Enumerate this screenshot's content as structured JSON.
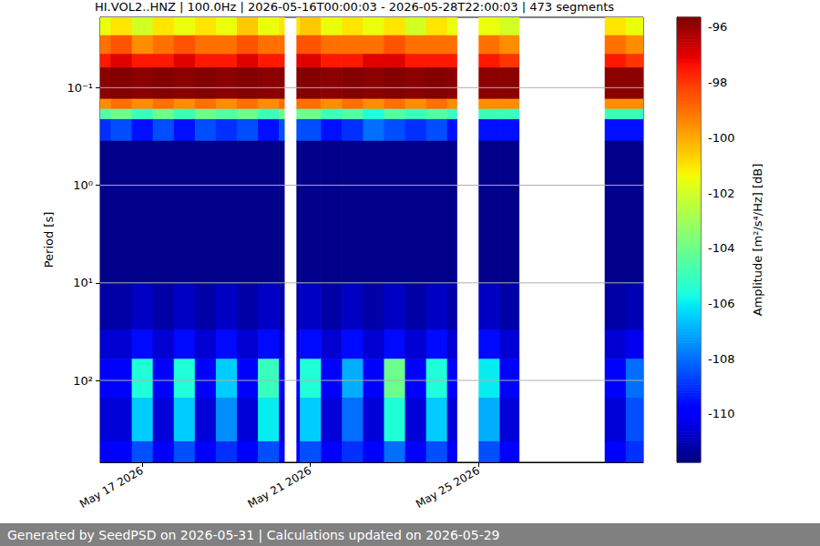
{
  "chart_data": {
    "type": "heatmap",
    "title": "HI.VOL2..HNZ | 100.0Hz | 2026-05-16T00:00:03 - 2026-05-28T22:00:03 | 473 segments",
    "footer": "Generated by SeedPSD on 2026-05-31 | Calculations updated on 2026-05-29",
    "y_label": "Period [s]",
    "colorbar_label": "Amplitude [m²/s⁴/Hz] [dB]",
    "log": "y",
    "grid": "y",
    "xlim": [
      "2026-05-16T00:00:03",
      "2026-05-28T22:00:03"
    ],
    "xticks": [
      {
        "value": "2026-05-17T00:00:00",
        "label": "May 17 2026"
      },
      {
        "value": "2026-05-21T00:00:00",
        "label": "May 21 2026"
      },
      {
        "value": "2026-05-25T00:00:00",
        "label": "May 25 2026"
      }
    ],
    "ylim": [
      0.019,
      690
    ],
    "yticks": [
      {
        "value": 0.1,
        "label": "10⁻¹"
      },
      {
        "value": 1,
        "label": "10⁰"
      },
      {
        "value": 10,
        "label": "10¹"
      },
      {
        "value": 100,
        "label": "10²"
      }
    ],
    "x_bins": [
      "2026-05-16T00:00:03",
      "2026-05-16T06:00:00",
      "2026-05-16T18:00:00",
      "2026-05-17T06:00:00",
      "2026-05-17T18:00:00",
      "2026-05-18T06:00:00",
      "2026-05-18T18:00:00",
      "2026-05-19T06:00:00",
      "2026-05-19T18:00:00",
      "2026-05-20T06:00:00",
      "2026-05-20T09:00:00",
      "2026-05-20T16:00:00",
      "2026-05-20T18:00:00",
      "2026-05-21T06:00:00",
      "2026-05-21T18:00:00",
      "2026-05-22T06:00:00",
      "2026-05-22T18:00:00",
      "2026-05-23T06:00:00",
      "2026-05-23T18:00:00",
      "2026-05-24T06:00:00",
      "2026-05-24T11:30:00",
      "2026-05-25T00:00:00",
      "2026-05-25T12:00:00",
      "2026-05-25T23:00:00",
      "2026-05-28T00:00:00",
      "2026-05-28T12:00:00",
      "2026-05-28T22:00:03"
    ],
    "y_bins": [
      0.019,
      0.029,
      0.045,
      0.062,
      0.13,
      0.165,
      0.21,
      0.35,
      10,
      30,
      60,
      150,
      420,
      690
    ],
    "cells": [
      [
        -101.5,
        -101,
        -102,
        -101,
        -101.5,
        -101,
        -101.5,
        -100.5,
        -101.5,
        -101,
        null,
        -101,
        -100.5,
        -101.5,
        -101,
        -101.5,
        -101,
        -102,
        -101,
        -101.5,
        null,
        -101.5,
        -102,
        null,
        -101,
        -101.5
      ],
      [
        -99,
        -98.5,
        -99.5,
        -99,
        -98.5,
        -99,
        -99,
        -98.5,
        -99,
        -99,
        null,
        -98.5,
        -98.5,
        -99,
        -99,
        -99,
        -98.5,
        -99,
        -99,
        -99,
        null,
        -99,
        -99.5,
        null,
        -99,
        -99.5
      ],
      [
        -97.5,
        -97,
        -97.5,
        -97.5,
        -97,
        -97.5,
        -97.5,
        -97,
        -97.5,
        -97.5,
        null,
        -97,
        -97,
        -97.5,
        -97.5,
        -97,
        -97,
        -97.5,
        -97.5,
        -97.5,
        null,
        -97.5,
        -98,
        null,
        -97.5,
        -98
      ],
      [
        -95.8,
        -95.7,
        -95.8,
        -95.7,
        -95.8,
        -95.7,
        -95.8,
        -95.7,
        -95.8,
        -95.7,
        null,
        -95.7,
        -95.7,
        -95.8,
        -95.7,
        -95.8,
        -95.7,
        -95.8,
        -95.7,
        -95.8,
        null,
        -95.8,
        -95.8,
        null,
        -95.8,
        -95.8
      ],
      [
        -99.5,
        -99,
        -99.5,
        -99,
        -99.5,
        -99,
        -99.5,
        -99,
        -99.5,
        -99,
        null,
        -99,
        -99,
        -99.5,
        -99,
        -99.5,
        -99,
        -99.5,
        -99,
        -99.5,
        null,
        -99.5,
        -99.5,
        null,
        -99.5,
        -99.5
      ],
      [
        -104.5,
        -104,
        -105,
        -104,
        -105,
        -104,
        -104.5,
        -104,
        -105,
        -104,
        null,
        -104,
        -104,
        -105,
        -104.5,
        -105.5,
        -104.5,
        -105,
        -104.5,
        -105,
        null,
        -105,
        -105,
        null,
        -105,
        -105
      ],
      [
        -109,
        -108.5,
        -109.5,
        -108.5,
        -109.5,
        -108.5,
        -109,
        -108.5,
        -109.5,
        -108.5,
        null,
        -108.5,
        -108.5,
        -109.5,
        -109,
        -108,
        -108.5,
        -109,
        -108.5,
        -109.5,
        null,
        -109.5,
        -109.5,
        null,
        -109.5,
        -109.5
      ],
      [
        -111.6,
        -111.6,
        -111.6,
        -111.6,
        -111.6,
        -111.6,
        -111.6,
        -111.6,
        -111.6,
        -111.6,
        null,
        -111.6,
        -111.6,
        -111.6,
        -111.6,
        -111.6,
        -111.6,
        -111.6,
        -111.6,
        -111.6,
        null,
        -111.6,
        -111.6,
        null,
        -111.6,
        -111.6
      ],
      [
        -111.2,
        -111.2,
        -110.8,
        -111.2,
        -110.8,
        -111.2,
        -110.8,
        -111.2,
        -110.8,
        -111.2,
        null,
        -111.2,
        -110.8,
        -111.2,
        -110.8,
        -111.2,
        -110.8,
        -111.2,
        -110.8,
        -111.2,
        null,
        -110.8,
        -111.2,
        null,
        -111.2,
        -111
      ],
      [
        -110.6,
        -110.6,
        -109.6,
        -110.6,
        -109.6,
        -110.6,
        -109.6,
        -110.6,
        -109.6,
        -110.6,
        null,
        -110.6,
        -109.6,
        -110.6,
        -109.6,
        -110.6,
        -109.6,
        -110.6,
        -109.6,
        -110.6,
        null,
        -109.6,
        -110.6,
        null,
        -110.6,
        -110.2
      ],
      [
        -110,
        -110,
        -105.5,
        -110,
        -105.5,
        -110,
        -106.5,
        -110,
        -105,
        -110,
        null,
        -110,
        -105.5,
        -110,
        -107,
        -110,
        -104,
        -110,
        -105.5,
        -110,
        null,
        -106,
        -110,
        null,
        -110,
        -108
      ],
      [
        -110.5,
        -110.5,
        -106.5,
        -110.5,
        -106.5,
        -110.5,
        -107.5,
        -110.5,
        -106,
        -110.5,
        null,
        -110.5,
        -106.5,
        -110.5,
        -108,
        -110.5,
        -105.5,
        -110.5,
        -106.5,
        -110.5,
        null,
        -107,
        -110.5,
        null,
        -110.5,
        -108.5
      ],
      [
        -109.8,
        -109.8,
        -108.5,
        -109.8,
        -108.5,
        -109.8,
        -109,
        -109.8,
        -108.5,
        -109.8,
        null,
        -109.8,
        -108.5,
        -109.8,
        -109,
        -109.8,
        -108,
        -109.8,
        -108.5,
        -109.8,
        null,
        -108.5,
        -109.8,
        null,
        -109.8,
        -109
      ]
    ],
    "colorbar_lim": [
      -111.75,
      -95.64
    ],
    "colorbar_ticks": [
      -110,
      -108,
      -106,
      -104,
      -102,
      -100,
      -98,
      -96
    ]
  }
}
